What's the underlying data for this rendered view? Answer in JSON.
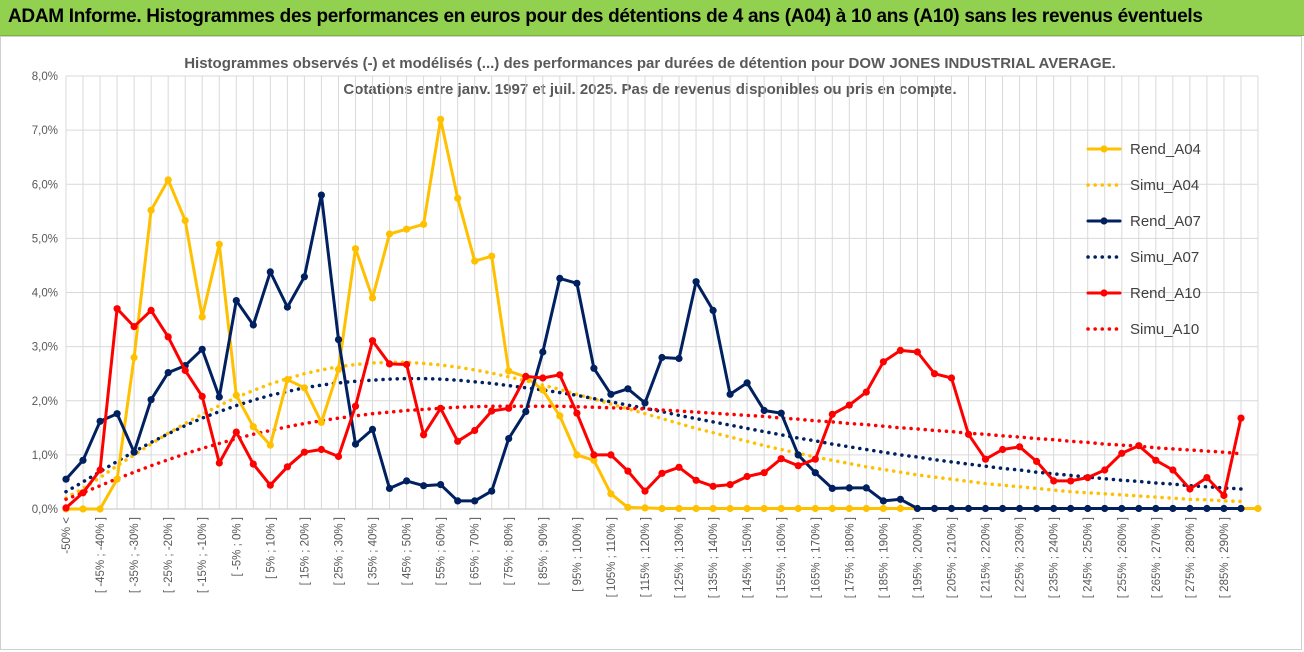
{
  "header": {
    "title": "ADAM Informe. Histogrammes des performances en euros pour des détentions de 4 ans (A04) à 10 ans (A10) sans les revenus éventuels"
  },
  "chart_data": {
    "type": "line",
    "title_line1": "Histogrammes observés (-) et modélisés (...) des performances par durées de détention pour DOW JONES INDUSTRIAL AVERAGE.",
    "title_line2": "Cotations entre janv. 1997 et juil. 2025. Pas de revenus disponibles ou pris en compte.",
    "ylim": [
      0,
      8
    ],
    "yticks": [
      "0,0%",
      "1,0%",
      "2,0%",
      "3,0%",
      "4,0%",
      "5,0%",
      "6,0%",
      "7,0%",
      "8,0%"
    ],
    "xlabels": [
      "-50% <",
      "[ -45% ; -40% ]",
      "[ -35% ; -30% ]",
      "[ -25% ; -20% ]",
      "[ -15% ; -10% ]",
      "[ -5% ; 0% ]",
      "[ 5% ; 10% ]",
      "[ 15% ; 20% ]",
      "[ 25% ; 30% ]",
      "[ 35% ; 40% ]",
      "[ 45% ; 50% ]",
      "[ 55% ; 60% ]",
      "[ 65% ; 70% ]",
      "[ 75% ; 80% ]",
      "[ 85% ; 90% ]",
      "[ 95% ; 100% ]",
      "[ 105% ; 110% ]",
      "[ 115% ; 120% ]",
      "[ 125% ; 130% ]",
      "[ 135% ; 140% ]",
      "[ 145% ; 150% ]",
      "[ 155% ; 160% ]",
      "[ 165% ; 170% ]",
      "[ 175% ; 180% ]",
      "[ 185% ; 190% ]",
      "[ 195% ; 200% ]",
      "[ 205% ; 210% ]",
      "[ 215% ; 220% ]",
      "[ 225% ; 230% ]",
      "[ 235% ; 240% ]",
      "[ 245% ; 250% ]",
      "[ 255% ; 260% ]",
      "[ 265% ; 270% ]",
      "[ 275% ; 280% ]",
      "[ 285% ; 290% ]"
    ],
    "series": [
      {
        "name": "Rend_A04",
        "color": "#FFC000",
        "style": "solid",
        "values": [
          0,
          0,
          0,
          0.55,
          2.8,
          5.52,
          6.08,
          5.33,
          3.55,
          4.89,
          2.1,
          1.52,
          1.18,
          2.39,
          2.24,
          1.6,
          2.58,
          4.81,
          3.9,
          5.08,
          5.17,
          5.26,
          7.2,
          5.74,
          4.58,
          4.67,
          2.55,
          2.44,
          2.2,
          1.72,
          1.0,
          0.9,
          0.28,
          0.03,
          0.02,
          0.01,
          0.01,
          0.01,
          0.01,
          0.01,
          0.01,
          0.01,
          0.01,
          0.01,
          0.01,
          0.01,
          0.01,
          0.01,
          0.01,
          0.01,
          0.01,
          0.01,
          0.01,
          0.01,
          0.01,
          0.01,
          0.01,
          0.01,
          0.01,
          0.01,
          0.01,
          0.01,
          0.01,
          0.01,
          0.01,
          0.01,
          0.01,
          0.01,
          0.01,
          0.01,
          0.01
        ]
      },
      {
        "name": "Simu_A04",
        "color": "#FFC000",
        "style": "dotted",
        "values": [
          0.2,
          0.38,
          0.58,
          0.8,
          1.0,
          1.2,
          1.4,
          1.58,
          1.75,
          1.91,
          2.06,
          2.19,
          2.31,
          2.41,
          2.5,
          2.57,
          2.63,
          2.67,
          2.7,
          2.71,
          2.71,
          2.69,
          2.66,
          2.62,
          2.57,
          2.51,
          2.44,
          2.37,
          2.29,
          2.21,
          2.12,
          2.03,
          1.94,
          1.85,
          1.76,
          1.67,
          1.58,
          1.49,
          1.41,
          1.33,
          1.25,
          1.17,
          1.1,
          1.03,
          0.96,
          0.9,
          0.84,
          0.78,
          0.73,
          0.68,
          0.63,
          0.59,
          0.55,
          0.51,
          0.47,
          0.44,
          0.41,
          0.38,
          0.35,
          0.32,
          0.3,
          0.28,
          0.26,
          0.24,
          0.22,
          0.2,
          0.18,
          0.17,
          0.15,
          0.14
        ]
      },
      {
        "name": "Rend_A07",
        "color": "#002060",
        "style": "solid",
        "values": [
          0.55,
          0.9,
          1.62,
          1.76,
          1.05,
          2.02,
          2.52,
          2.65,
          2.95,
          2.07,
          3.85,
          3.4,
          4.38,
          3.73,
          4.29,
          5.8,
          3.13,
          1.2,
          1.47,
          0.38,
          0.52,
          0.43,
          0.45,
          0.15,
          0.15,
          0.33,
          1.3,
          1.8,
          2.9,
          4.26,
          4.17,
          2.6,
          2.12,
          2.22,
          1.96,
          2.8,
          2.78,
          4.2,
          3.67,
          2.12,
          2.33,
          1.82,
          1.77,
          1.0,
          0.67,
          0.38,
          0.39,
          0.39,
          0.15,
          0.18,
          0.01,
          0.01,
          0.01,
          0.01,
          0.01,
          0.01,
          0.01,
          0.01,
          0.01,
          0.01,
          0.01,
          0.01,
          0.01,
          0.01,
          0.01,
          0.01,
          0.01,
          0.01,
          0.01,
          0.01
        ]
      },
      {
        "name": "Simu_A07",
        "color": "#002060",
        "style": "dotted",
        "values": [
          0.32,
          0.5,
          0.69,
          0.88,
          1.06,
          1.23,
          1.39,
          1.54,
          1.68,
          1.8,
          1.91,
          2.01,
          2.1,
          2.17,
          2.24,
          2.29,
          2.33,
          2.36,
          2.38,
          2.4,
          2.41,
          2.41,
          2.4,
          2.38,
          2.35,
          2.32,
          2.28,
          2.24,
          2.2,
          2.15,
          2.1,
          2.04,
          1.98,
          1.92,
          1.86,
          1.8,
          1.73,
          1.67,
          1.61,
          1.55,
          1.49,
          1.43,
          1.37,
          1.31,
          1.26,
          1.2,
          1.15,
          1.1,
          1.05,
          1.0,
          0.96,
          0.91,
          0.87,
          0.83,
          0.79,
          0.75,
          0.72,
          0.68,
          0.65,
          0.62,
          0.59,
          0.56,
          0.53,
          0.51,
          0.48,
          0.46,
          0.43,
          0.41,
          0.39,
          0.37
        ]
      },
      {
        "name": "Rend_A10",
        "color": "#FF0000",
        "style": "solid",
        "values": [
          0.02,
          0.3,
          0.72,
          3.7,
          3.37,
          3.67,
          3.18,
          2.56,
          2.08,
          0.85,
          1.42,
          0.83,
          0.44,
          0.78,
          1.05,
          1.1,
          0.97,
          1.9,
          3.11,
          2.68,
          2.67,
          1.37,
          1.86,
          1.25,
          1.45,
          1.81,
          1.86,
          2.45,
          2.42,
          2.48,
          1.77,
          1.0,
          1.0,
          0.7,
          0.33,
          0.66,
          0.77,
          0.53,
          0.42,
          0.45,
          0.6,
          0.67,
          0.93,
          0.8,
          0.92,
          1.75,
          1.92,
          2.16,
          2.72,
          2.93,
          2.9,
          2.5,
          2.42,
          1.38,
          0.92,
          1.1,
          1.15,
          0.88,
          0.52,
          0.52,
          0.58,
          0.72,
          1.03,
          1.17,
          0.9,
          0.72,
          0.37,
          0.58,
          0.25,
          1.68
        ]
      },
      {
        "name": "Simu_A10",
        "color": "#FF0000",
        "style": "dotted",
        "values": [
          0.18,
          0.3,
          0.43,
          0.56,
          0.68,
          0.8,
          0.91,
          1.02,
          1.12,
          1.21,
          1.3,
          1.38,
          1.45,
          1.52,
          1.58,
          1.63,
          1.68,
          1.72,
          1.76,
          1.79,
          1.82,
          1.84,
          1.86,
          1.88,
          1.89,
          1.9,
          1.9,
          1.9,
          1.9,
          1.9,
          1.89,
          1.88,
          1.87,
          1.86,
          1.85,
          1.83,
          1.81,
          1.79,
          1.77,
          1.75,
          1.73,
          1.71,
          1.68,
          1.66,
          1.63,
          1.61,
          1.58,
          1.56,
          1.53,
          1.5,
          1.48,
          1.45,
          1.43,
          1.4,
          1.38,
          1.35,
          1.33,
          1.3,
          1.28,
          1.25,
          1.23,
          1.2,
          1.18,
          1.16,
          1.13,
          1.11,
          1.09,
          1.07,
          1.05,
          1.02
        ]
      }
    ],
    "legend_position": "right"
  }
}
